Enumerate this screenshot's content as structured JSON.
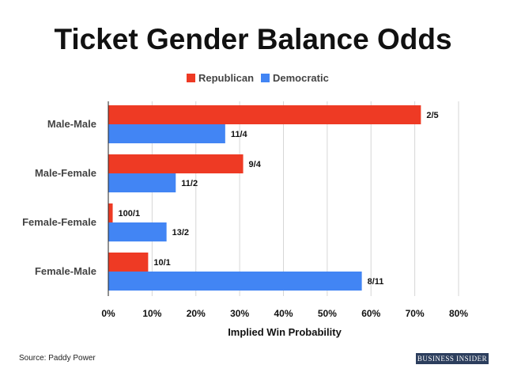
{
  "chart_data": {
    "type": "bar",
    "orientation": "horizontal",
    "title": "Ticket Gender Balance Odds",
    "xlabel": "Implied Win Probability",
    "ylabel": "",
    "categories": [
      "Male-Male",
      "Male-Female",
      "Female-Female",
      "Female-Male"
    ],
    "series": [
      {
        "name": "Republican",
        "color": "#ee3a24",
        "values": [
          71.4,
          30.8,
          1.0,
          9.1
        ],
        "labels": [
          "2/5",
          "9/4",
          "100/1",
          "10/1"
        ]
      },
      {
        "name": "Democratic",
        "color": "#4285f4",
        "values": [
          26.7,
          15.4,
          13.3,
          57.9
        ],
        "labels": [
          "11/4",
          "11/2",
          "13/2",
          "8/11"
        ]
      }
    ],
    "xlim": [
      0,
      80
    ],
    "xticks": [
      0,
      10,
      20,
      30,
      40,
      50,
      60,
      70,
      80
    ],
    "xtick_labels": [
      "0%",
      "10%",
      "20%",
      "30%",
      "40%",
      "50%",
      "60%",
      "70%",
      "80%"
    ],
    "grid": true,
    "legend_position": "top-center"
  },
  "source": "Source: Paddy Power",
  "logo_text": "BUSINESS INSIDER"
}
